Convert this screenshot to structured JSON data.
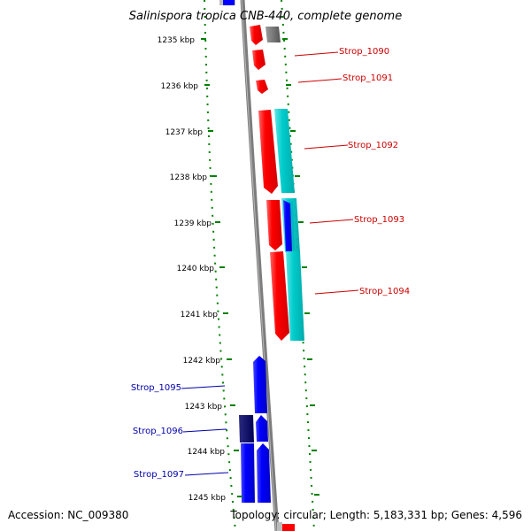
{
  "title": "Salinispora tropica CNB-440, complete genome",
  "footer": {
    "accession": "Accession: NC_009380",
    "topology": "Topology: circular; Length: 5,183,331 bp; Genes: 4,596"
  },
  "scale": {
    "unit": "kbp",
    "ticks": [
      "1235 kbp",
      "1236 kbp",
      "1237 kbp",
      "1238 kbp",
      "1239 kbp",
      "1240 kbp",
      "1241 kbp",
      "1242 kbp",
      "1243 kbp",
      "1244 kbp",
      "1245 kbp"
    ]
  },
  "gene_labels": {
    "forward": [
      "Strop_1090",
      "Strop_1091",
      "Strop_1092",
      "Strop_1093",
      "Strop_1094"
    ],
    "reverse": [
      "Strop_1095",
      "Strop_1096",
      "Strop_1097"
    ]
  },
  "colors": {
    "forward_cds": "#ff0000",
    "reverse_cds": "#0000ff",
    "forward_feature": "#00cccc",
    "backbone": "#808080",
    "ticks": "#008000",
    "forward_label": "#cc0000",
    "reverse_label": "#0000aa"
  }
}
